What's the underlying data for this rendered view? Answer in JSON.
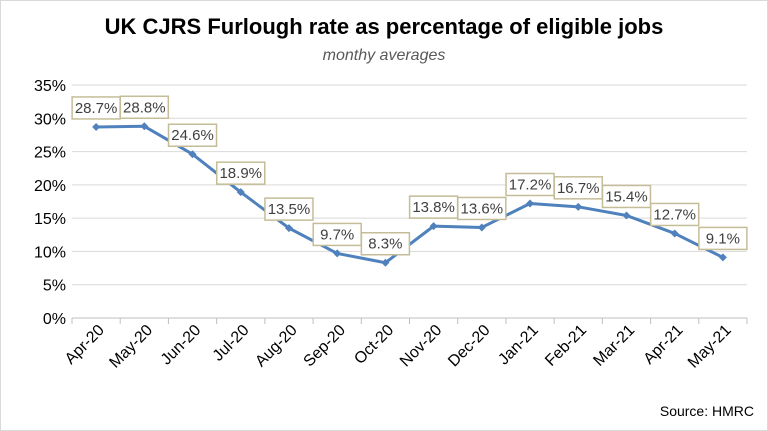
{
  "chart_data": {
    "type": "line",
    "title": "UK CJRS Furlough rate as percentage of eligible jobs",
    "subtitle": "monthy averages",
    "source": "Source: HMRC",
    "categories": [
      "Apr-20",
      "May-20",
      "Jun-20",
      "Jul-20",
      "Aug-20",
      "Sep-20",
      "Oct-20",
      "Nov-20",
      "Dec-20",
      "Jan-21",
      "Feb-21",
      "Mar-21",
      "Apr-21",
      "May-21"
    ],
    "series": [
      {
        "values": [
          28.7,
          28.8,
          24.6,
          18.9,
          13.5,
          9.7,
          8.3,
          13.8,
          13.6,
          17.2,
          16.7,
          15.4,
          12.7,
          9.1
        ],
        "labels": [
          "28.7%",
          "28.8%",
          "24.6%",
          "18.9%",
          "13.5%",
          "9.7%",
          "8.3%",
          "13.8%",
          "13.6%",
          "17.2%",
          "16.7%",
          "15.4%",
          "12.7%",
          "9.1%"
        ],
        "color": "#4f81bd"
      }
    ],
    "ylim": [
      0,
      35
    ],
    "yticks": [
      0,
      5,
      10,
      15,
      20,
      25,
      30,
      35
    ],
    "ytick_labels": [
      "0%",
      "5%",
      "10%",
      "15%",
      "20%",
      "25%",
      "30%",
      "35%"
    ],
    "grid": true,
    "gridline_color": "#d9d9d9",
    "label_border_color": "#c4bd97"
  }
}
